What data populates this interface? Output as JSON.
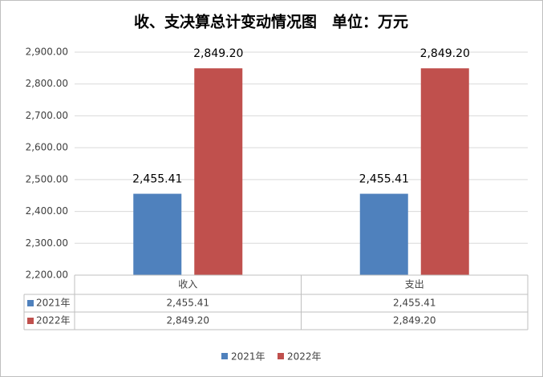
{
  "chart_data": {
    "type": "bar",
    "title": "收、支决算总计变动情况图　单位：万元",
    "categories": [
      "收入",
      "支出"
    ],
    "series": [
      {
        "name": "2021年",
        "color": "#4f81bd",
        "values": [
          2455.41,
          2455.41
        ],
        "value_labels": [
          "2,455.41",
          "2,455.41"
        ]
      },
      {
        "name": "2022年",
        "color": "#c0504d",
        "values": [
          2849.2,
          2849.2
        ],
        "value_labels": [
          "2,849.20",
          "2,849.20"
        ]
      }
    ],
    "ylim": [
      2200,
      2900
    ],
    "yticks": [
      {
        "value": 2200,
        "label": "2,200.00"
      },
      {
        "value": 2300,
        "label": "2,300.00"
      },
      {
        "value": 2400,
        "label": "2,400.00"
      },
      {
        "value": 2500,
        "label": "2,500.00"
      },
      {
        "value": 2600,
        "label": "2,600.00"
      },
      {
        "value": 2700,
        "label": "2,700.00"
      },
      {
        "value": 2800,
        "label": "2,800.00"
      },
      {
        "value": 2900,
        "label": "2,900.00"
      }
    ],
    "grid": true,
    "legend": "bottom",
    "data_table": true
  }
}
